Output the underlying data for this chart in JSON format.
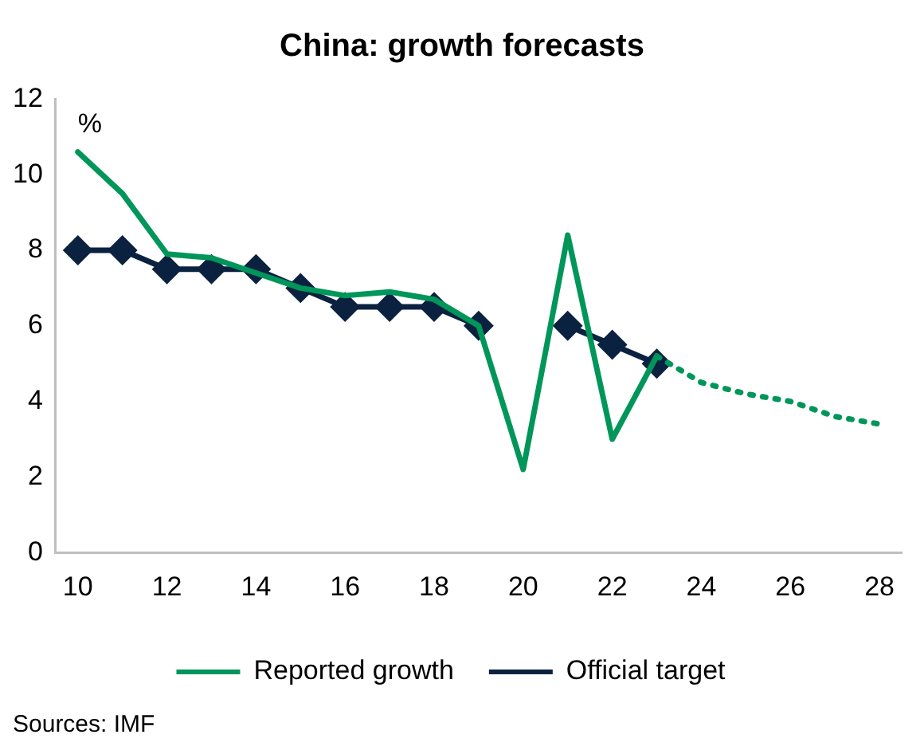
{
  "chart_data": {
    "type": "line",
    "title": "China: growth forecasts",
    "ylabel": "%",
    "x": [
      10,
      11,
      12,
      13,
      14,
      15,
      16,
      17,
      18,
      19,
      20,
      21,
      22,
      23,
      24,
      25,
      26,
      27,
      28
    ],
    "xlim": [
      9.5,
      28.5
    ],
    "xticks": [
      10,
      12,
      14,
      16,
      18,
      20,
      22,
      24,
      26,
      28
    ],
    "ylim": [
      0,
      12
    ],
    "yticks": [
      0,
      2,
      4,
      6,
      8,
      10,
      12
    ],
    "grid": false,
    "legend": "bottom",
    "series": [
      {
        "name": "Reported growth",
        "color": "#00965a",
        "marker": "none",
        "line_style": "solid",
        "values": [
          10.6,
          9.5,
          7.9,
          7.8,
          7.4,
          7.0,
          6.8,
          6.9,
          6.7,
          6.0,
          2.2,
          8.4,
          3.0,
          5.2,
          null,
          null,
          null,
          null,
          null
        ]
      },
      {
        "color": "#00965a",
        "marker": "none",
        "line_style": "dotted",
        "values": [
          null,
          null,
          null,
          null,
          null,
          null,
          null,
          null,
          null,
          null,
          null,
          null,
          null,
          5.2,
          4.5,
          4.2,
          4.0,
          3.6,
          3.4
        ]
      },
      {
        "name": "Official target",
        "color": "#0a2240",
        "marker": "diamond",
        "line_style": "solid",
        "values": [
          8,
          8,
          7.5,
          7.5,
          7.5,
          7,
          6.5,
          6.5,
          6.5,
          6,
          null,
          6,
          5.5,
          5,
          null,
          null,
          null,
          null,
          null
        ]
      }
    ],
    "annotations": [
      "Sources: IMF"
    ]
  }
}
